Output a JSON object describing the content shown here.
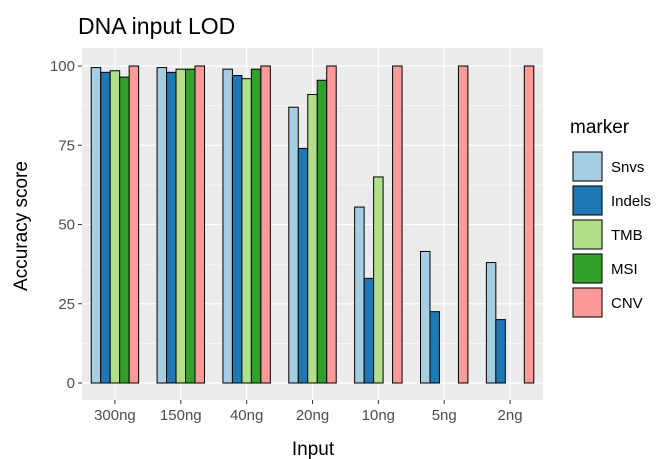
{
  "chart_data": {
    "type": "bar",
    "title": "DNA input LOD",
    "xlabel": "Input",
    "ylabel": "Accuracy score",
    "categories": [
      "300ng",
      "150ng",
      "40ng",
      "20ng",
      "10ng",
      "5ng",
      "2ng"
    ],
    "y_ticks": [
      "0",
      "25",
      "50",
      "75",
      "100"
    ],
    "ylim": [
      0,
      100
    ],
    "legend_title": "marker",
    "legend_position": "right",
    "grid": true,
    "series": [
      {
        "name": "Snvs",
        "color": "#a6cee3",
        "values": [
          99.5,
          99.5,
          99.0,
          87.0,
          55.5,
          41.5,
          38.0
        ]
      },
      {
        "name": "Indels",
        "color": "#1f78b4",
        "values": [
          98.0,
          98.0,
          97.0,
          74.0,
          33.0,
          22.5,
          20.0
        ]
      },
      {
        "name": "TMB",
        "color": "#b2df8a",
        "values": [
          98.5,
          99.0,
          96.0,
          91.0,
          65.0,
          0,
          0
        ]
      },
      {
        "name": "MSI",
        "color": "#33a02c",
        "values": [
          96.5,
          99.0,
          99.0,
          95.5,
          0,
          0,
          0
        ]
      },
      {
        "name": "CNV",
        "color": "#fb9a99",
        "values": [
          100,
          100,
          100,
          100,
          100,
          100,
          100
        ]
      }
    ]
  }
}
